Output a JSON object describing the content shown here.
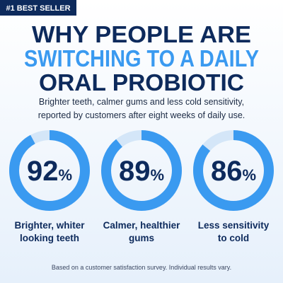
{
  "badge": "#1 BEST SELLER",
  "headline": {
    "lines": [
      "WHY PEOPLE ARE",
      "SWITCHING TO A DAILY",
      "ORAL PROBIOTIC"
    ]
  },
  "subtitle": {
    "lines": [
      "Brighter teeth, calmer gums and less cold sensitivity,",
      "reported by customers after eight weeks of daily use."
    ]
  },
  "unit": "%",
  "stats": [
    {
      "value": 92,
      "label": [
        "Brighter, whiter",
        "looking teeth"
      ]
    },
    {
      "value": 89,
      "label": [
        "Calmer, healthier",
        "gums"
      ]
    },
    {
      "value": 86,
      "label": [
        "Less sensitivity",
        "to cold"
      ]
    }
  ],
  "footnote": "Based on a customer satisfaction survey. Individual results vary."
}
